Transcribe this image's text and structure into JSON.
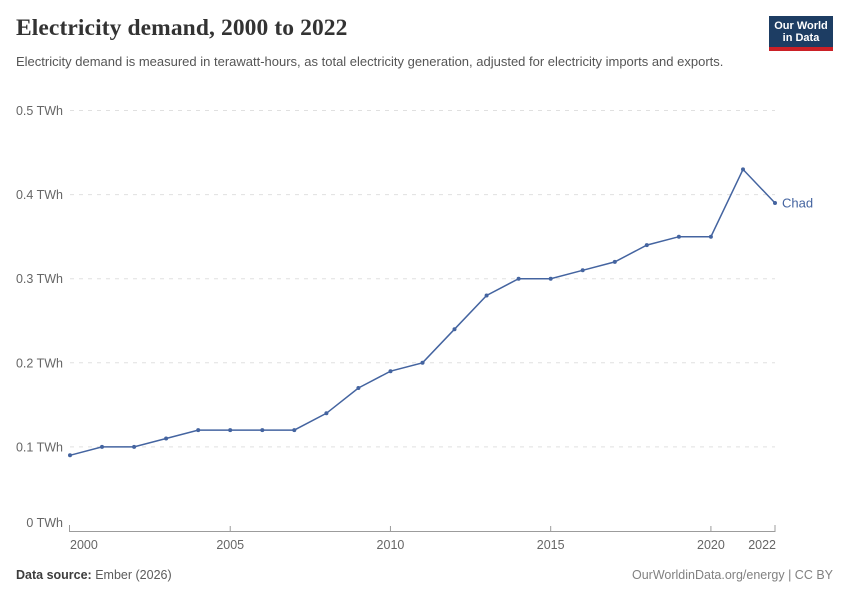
{
  "header": {
    "title": "Electricity demand, 2000 to 2022",
    "subtitle": "Electricity demand is measured in terawatt-hours, as total electricity generation, adjusted for electricity imports and exports.",
    "logo": {
      "line1": "Our World",
      "line2": "in Data",
      "background": "#1d3d63",
      "stripe": "#cb2026"
    }
  },
  "chart_data": {
    "type": "line",
    "title": "Electricity demand, 2000 to 2022",
    "xlabel": "",
    "ylabel": "",
    "unit": "TWh",
    "xlim": [
      2000,
      2022
    ],
    "ylim": [
      0,
      0.5
    ],
    "x_ticks": [
      2000,
      2005,
      2010,
      2015,
      2020,
      2022
    ],
    "y_ticks": [
      0,
      0.1,
      0.2,
      0.3,
      0.4,
      0.5
    ],
    "y_tick_labels": [
      "0 TWh",
      "0.1 TWh",
      "0.2 TWh",
      "0.3 TWh",
      "0.4 TWh",
      "0.5 TWh"
    ],
    "grid": "horizontal-dashed",
    "legend_position": "end-of-line-label",
    "series": [
      {
        "name": "Chad",
        "color": "#4464a0",
        "x": [
          2000,
          2001,
          2002,
          2003,
          2004,
          2005,
          2006,
          2007,
          2008,
          2009,
          2010,
          2011,
          2012,
          2013,
          2014,
          2015,
          2016,
          2017,
          2018,
          2019,
          2020,
          2021,
          2022
        ],
        "values": [
          0.09,
          0.1,
          0.1,
          0.11,
          0.12,
          0.12,
          0.12,
          0.12,
          0.14,
          0.17,
          0.19,
          0.2,
          0.24,
          0.28,
          0.3,
          0.3,
          0.31,
          0.32,
          0.34,
          0.35,
          0.35,
          0.43,
          0.39
        ]
      }
    ]
  },
  "footer": {
    "source_label": "Data source:",
    "source_value": " Ember (2026)",
    "credit": "OurWorldinData.org/energy | CC BY"
  },
  "colors": {
    "line": "#4464a0",
    "gridline": "#e0e0e0",
    "axis": "#9c9c9c",
    "tick_label": "#666666"
  }
}
